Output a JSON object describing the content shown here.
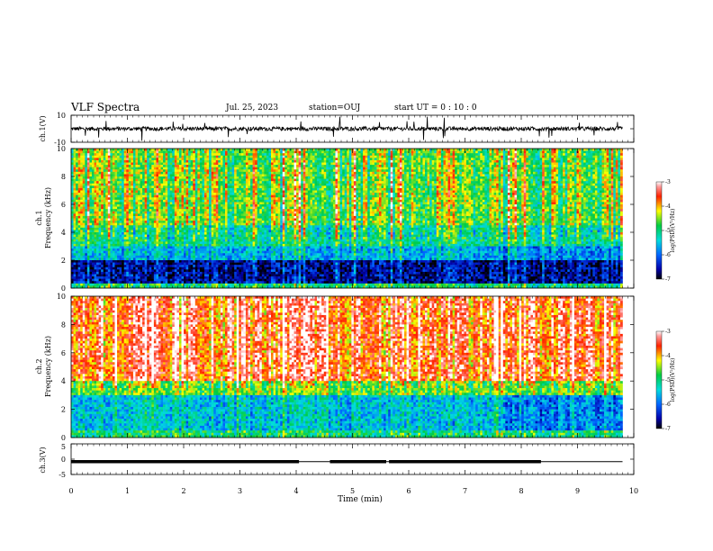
{
  "header": {
    "title": "VLF Spectra",
    "date": "Jul. 25, 2023",
    "station": "station=OUJ",
    "start": "start UT = 0 : 10 : 0"
  },
  "chart_data": [
    {
      "type": "line",
      "panel": "ch1-waveform",
      "ylabel": "ch.1(V)",
      "ylim": [
        -10,
        10
      ],
      "yticks": [
        "10",
        "-10"
      ],
      "xlim": [
        0,
        10
      ],
      "trace_color": "#000000",
      "baseline": 0,
      "description_values": {
        "typical_amplitude": 1.5,
        "spike_amplitude": 9
      }
    },
    {
      "type": "heatmap",
      "panel": "ch1-spectrogram",
      "ylabel": "ch.1 Frequency (kHz)",
      "ylim": [
        0,
        10
      ],
      "yticks": [
        "0",
        "2",
        "4",
        "6",
        "8",
        "10"
      ],
      "xlim": [
        0,
        9.8
      ],
      "colorbar": {
        "label": "log(PSD)(V²/Hz)",
        "range": [
          -7,
          -3
        ],
        "ticks": [
          "-3",
          "-4",
          "-5",
          "-6",
          "-7"
        ]
      },
      "dominant_log_psd": {
        "0-0.3kHz": -5,
        "0.3-2kHz": -6.5,
        "2-3kHz": -5.5,
        "3-4.5kHz": -5,
        "4.5-10kHz": -4.5
      }
    },
    {
      "type": "heatmap",
      "panel": "ch2-spectrogram",
      "ylabel": "ch.2 Frequency (kHz)",
      "ylim": [
        0,
        10
      ],
      "yticks": [
        "0",
        "2",
        "4",
        "6",
        "8",
        "10"
      ],
      "xlim": [
        0,
        9.8
      ],
      "colorbar": {
        "label": "log(PSD)(V²/Hz)",
        "range": [
          -7,
          -3
        ],
        "ticks": [
          "-3",
          "-4",
          "-5",
          "-6",
          "-7"
        ]
      },
      "dominant_log_psd": {
        "0-0.5kHz": -5,
        "0.5-3kHz": -5.5,
        "3-4kHz": -4.6,
        "4-10kHz": -3.6
      }
    },
    {
      "type": "line",
      "panel": "ch3-waveform",
      "ylabel": "ch.3(V)",
      "ylim": [
        -5,
        5
      ],
      "yticks": [
        "5",
        "0",
        "-5"
      ],
      "xlim": [
        0,
        10
      ],
      "xlabel": "Time (min)",
      "xticks": [
        "0",
        "1",
        "2",
        "3",
        "4",
        "5",
        "6",
        "7",
        "8",
        "9",
        "10"
      ],
      "level_V": -0.8,
      "thick_segments_min": [
        [
          0,
          4.05
        ],
        [
          4.6,
          5.6
        ],
        [
          5.65,
          8.35
        ]
      ],
      "trace_end_min": 9.8
    }
  ]
}
